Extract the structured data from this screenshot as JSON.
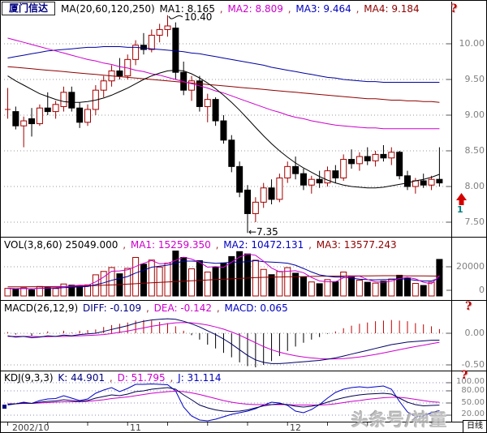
{
  "header": {
    "symbol": "厦门信达",
    "ma_group": "MA(20,60,120,250)",
    "sep": ",",
    "ma1": {
      "label": "MA1: 8.165",
      "color": "#000000"
    },
    "ma2": {
      "label": "MA2: 8.809",
      "color": "#CC00CC"
    },
    "ma3": {
      "label": "MA3: 9.464",
      "color": "#0000C0"
    },
    "ma4": {
      "label": "MA4: 9.184",
      "color": "#900000"
    },
    "help_icon": "?"
  },
  "main_chart": {
    "axis_labels": [
      "10.00",
      "9.50",
      "9.00",
      "8.50",
      "8.00",
      "7.50"
    ],
    "high_annotation": "10.40",
    "low_annotation": "←7.35",
    "signal_number": "1"
  },
  "vol": {
    "title": "VOL(3,8,60) 25049.000",
    "ma1": {
      "label": "MA1: 15259.350",
      "color": "#CC00CC"
    },
    "ma2": {
      "label": "MA2: 10472.131",
      "color": "#0000C0"
    },
    "ma3": {
      "label": "MA3: 13577.243",
      "color": "#900000"
    },
    "axis_labels": [
      "20000",
      "0"
    ]
  },
  "macd": {
    "title": "MACD(26,12,9)",
    "diff": {
      "label": "DIFF: -0.109",
      "color": "#000080"
    },
    "dea": {
      "label": "DEA: -0.142",
      "color": "#CC00CC"
    },
    "macd": {
      "label": "MACD: 0.065",
      "color": "#0000C0"
    },
    "axis_labels": [
      "0.00",
      "-0.50"
    ],
    "help_icon": "?"
  },
  "kdj": {
    "title": "KDJ(9,3,3)",
    "k": {
      "label": "K: 44.901",
      "color": "#000080"
    },
    "d": {
      "label": "D: 51.795",
      "color": "#CC00CC"
    },
    "j": {
      "label": "J: 31.114",
      "color": "#0000C0"
    },
    "axis_labels": [
      "100.00",
      "80.00",
      "50.00",
      "20.00"
    ],
    "help_icon": "?"
  },
  "date_axis": {
    "labels": [
      "2002/10",
      "11",
      "12"
    ]
  },
  "watermark": "头条号/神童",
  "period_selector": "日线",
  "chart_data": {
    "type": "candlestick-multi-panel",
    "symbol": "厦门信达",
    "panels": [
      "price+MA(20,60,120,250)",
      "VOL(3,8,60)",
      "MACD(26,12,9)",
      "KDJ(9,3,3)"
    ],
    "x_months": {
      "2002/10": 0,
      "11": 16,
      "12": 36
    },
    "price_axis": [
      10.0,
      9.5,
      9.0,
      8.5,
      8.0,
      7.5
    ],
    "high_label": 10.4,
    "low_label": 7.35,
    "last_values": {
      "ma1": 8.165,
      "ma2": 8.809,
      "ma3": 9.464,
      "ma4": 9.184,
      "vol": 25049.0,
      "vol_ma1": 15259.35,
      "vol_ma2": 10472.131,
      "vol_ma3": 13577.243,
      "diff": -0.109,
      "dea": -0.142,
      "macd": 0.065,
      "k": 44.901,
      "d": 51.795,
      "j": 31.114
    },
    "candles": [
      [
        9.08,
        9.38,
        8.95,
        9.08,
        5200
      ],
      [
        9.05,
        9.12,
        8.8,
        8.85,
        4800
      ],
      [
        8.85,
        8.98,
        8.55,
        8.92,
        5600
      ],
      [
        8.95,
        9.1,
        8.7,
        8.88,
        4200
      ],
      [
        8.88,
        9.15,
        8.85,
        9.1,
        6500
      ],
      [
        9.1,
        9.32,
        9.0,
        9.05,
        5800
      ],
      [
        9.05,
        9.2,
        8.95,
        9.15,
        5100
      ],
      [
        9.12,
        9.4,
        9.05,
        9.32,
        8200
      ],
      [
        9.32,
        9.4,
        9.05,
        9.1,
        7400
      ],
      [
        9.1,
        9.18,
        8.82,
        8.9,
        6800
      ],
      [
        8.9,
        9.15,
        8.85,
        9.08,
        7600
      ],
      [
        9.08,
        9.42,
        9.0,
        9.35,
        14500
      ],
      [
        9.35,
        9.55,
        9.25,
        9.48,
        16800
      ],
      [
        9.48,
        9.7,
        9.4,
        9.62,
        19500
      ],
      [
        9.62,
        9.8,
        9.5,
        9.55,
        15200
      ],
      [
        9.55,
        9.85,
        9.5,
        9.78,
        18900
      ],
      [
        9.78,
        10.05,
        9.7,
        9.98,
        26400
      ],
      [
        9.98,
        10.15,
        9.85,
        9.92,
        21800
      ],
      [
        9.92,
        10.2,
        9.88,
        10.12,
        24600
      ],
      [
        10.12,
        10.28,
        10.02,
        10.2,
        19800
      ],
      [
        10.2,
        10.4,
        10.1,
        10.25,
        22500
      ],
      [
        10.22,
        10.3,
        9.5,
        9.6,
        30800
      ],
      [
        9.6,
        9.75,
        9.28,
        9.35,
        26400
      ],
      [
        9.35,
        9.55,
        9.2,
        9.48,
        18600
      ],
      [
        9.48,
        9.55,
        9.05,
        9.12,
        24200
      ],
      [
        9.12,
        9.3,
        8.9,
        9.22,
        16400
      ],
      [
        9.22,
        9.25,
        8.85,
        8.92,
        19800
      ],
      [
        8.92,
        9.0,
        8.6,
        8.65,
        22600
      ],
      [
        8.65,
        8.72,
        8.2,
        8.28,
        27000
      ],
      [
        8.28,
        8.35,
        7.85,
        7.92,
        30400
      ],
      [
        7.95,
        8.02,
        7.35,
        7.62,
        28800
      ],
      [
        7.62,
        7.85,
        7.5,
        7.78,
        24500
      ],
      [
        7.78,
        8.05,
        7.7,
        7.98,
        18200
      ],
      [
        7.98,
        8.1,
        7.75,
        7.82,
        14600
      ],
      [
        7.82,
        8.18,
        7.78,
        8.12,
        16800
      ],
      [
        8.12,
        8.35,
        8.05,
        8.28,
        19400
      ],
      [
        8.28,
        8.42,
        8.1,
        8.18,
        15600
      ],
      [
        8.18,
        8.25,
        7.95,
        8.02,
        12800
      ],
      [
        8.02,
        8.15,
        7.9,
        8.1,
        9600
      ],
      [
        8.1,
        8.22,
        7.98,
        8.05,
        8400
      ],
      [
        8.05,
        8.28,
        8.0,
        8.22,
        11200
      ],
      [
        8.22,
        8.3,
        8.05,
        8.12,
        9800
      ],
      [
        8.12,
        8.45,
        8.08,
        8.38,
        16400
      ],
      [
        8.38,
        8.52,
        8.25,
        8.32,
        13600
      ],
      [
        8.32,
        8.48,
        8.22,
        8.42,
        10800
      ],
      [
        8.42,
        8.55,
        8.3,
        8.36,
        9400
      ],
      [
        8.36,
        8.5,
        8.28,
        8.45,
        8800
      ],
      [
        8.45,
        8.58,
        8.35,
        8.4,
        10200
      ],
      [
        8.4,
        8.55,
        8.3,
        8.48,
        11600
      ],
      [
        8.48,
        8.5,
        8.1,
        8.15,
        14200
      ],
      [
        8.15,
        8.22,
        7.95,
        8.0,
        12400
      ],
      [
        8.0,
        8.12,
        7.9,
        8.08,
        8600
      ],
      [
        8.08,
        8.18,
        7.98,
        8.02,
        7200
      ],
      [
        8.02,
        8.15,
        7.95,
        8.1,
        9400
      ],
      [
        8.1,
        8.55,
        8.0,
        8.05,
        25049
      ]
    ],
    "ma1": [
      9.55,
      9.48,
      9.42,
      9.36,
      9.3,
      9.26,
      9.22,
      9.19,
      9.18,
      9.18,
      9.19,
      9.21,
      9.24,
      9.28,
      9.33,
      9.38,
      9.44,
      9.5,
      9.55,
      9.59,
      9.62,
      9.63,
      9.62,
      9.58,
      9.52,
      9.45,
      9.37,
      9.28,
      9.18,
      9.07,
      8.95,
      8.83,
      8.71,
      8.6,
      8.5,
      8.41,
      8.33,
      8.26,
      8.2,
      8.14,
      8.09,
      8.05,
      8.02,
      8.0,
      7.99,
      7.98,
      7.98,
      7.99,
      8.01,
      8.03,
      8.05,
      8.08,
      8.1,
      8.13,
      8.17
    ],
    "ma2": [
      10.08,
      10.05,
      10.02,
      9.99,
      9.96,
      9.93,
      9.9,
      9.87,
      9.84,
      9.81,
      9.78,
      9.76,
      9.73,
      9.71,
      9.68,
      9.66,
      9.63,
      9.61,
      9.58,
      9.56,
      9.53,
      9.5,
      9.47,
      9.44,
      9.41,
      9.38,
      9.34,
      9.31,
      9.27,
      9.23,
      9.19,
      9.15,
      9.11,
      9.07,
      9.04,
      9.0,
      8.97,
      8.95,
      8.92,
      8.9,
      8.88,
      8.86,
      8.85,
      8.84,
      8.83,
      8.82,
      8.82,
      8.81,
      8.81,
      8.81,
      8.81,
      8.81,
      8.81,
      8.81,
      8.81
    ],
    "ma3": [
      9.8,
      9.82,
      9.84,
      9.86,
      9.88,
      9.9,
      9.91,
      9.92,
      9.93,
      9.94,
      9.95,
      9.95,
      9.96,
      9.96,
      9.96,
      9.95,
      9.95,
      9.94,
      9.93,
      9.92,
      9.91,
      9.9,
      9.89,
      9.87,
      9.86,
      9.84,
      9.82,
      9.8,
      9.78,
      9.76,
      9.74,
      9.72,
      9.7,
      9.67,
      9.65,
      9.63,
      9.61,
      9.59,
      9.57,
      9.55,
      9.53,
      9.52,
      9.5,
      9.49,
      9.48,
      9.47,
      9.47,
      9.46,
      9.46,
      9.46,
      9.46,
      9.46,
      9.46,
      9.46,
      9.46
    ],
    "ma4": [
      9.68,
      9.67,
      9.66,
      9.65,
      9.64,
      9.63,
      9.62,
      9.61,
      9.6,
      9.59,
      9.58,
      9.57,
      9.56,
      9.55,
      9.54,
      9.53,
      9.52,
      9.51,
      9.5,
      9.49,
      9.48,
      9.47,
      9.46,
      9.45,
      9.44,
      9.43,
      9.42,
      9.41,
      9.4,
      9.39,
      9.38,
      9.37,
      9.36,
      9.35,
      9.34,
      9.33,
      9.32,
      9.31,
      9.3,
      9.29,
      9.28,
      9.27,
      9.26,
      9.25,
      9.24,
      9.23,
      9.23,
      9.22,
      9.21,
      9.21,
      9.2,
      9.2,
      9.19,
      9.19,
      9.18
    ],
    "vol_ma60_points": [
      [
        0,
        6200
      ],
      [
        8,
        6500
      ],
      [
        14,
        7800
      ],
      [
        20,
        9600
      ],
      [
        26,
        11200
      ],
      [
        32,
        12800
      ],
      [
        40,
        13600
      ],
      [
        48,
        13900
      ],
      [
        54,
        13600
      ]
    ],
    "diff": [
      -0.04,
      -0.06,
      -0.05,
      -0.07,
      -0.06,
      -0.04,
      -0.05,
      -0.03,
      -0.04,
      -0.02,
      -0.01,
      0.0,
      0.03,
      0.06,
      0.09,
      0.12,
      0.16,
      0.19,
      0.21,
      0.22,
      0.23,
      0.22,
      0.19,
      0.15,
      0.1,
      0.04,
      -0.02,
      -0.09,
      -0.17,
      -0.26,
      -0.35,
      -0.42,
      -0.46,
      -0.48,
      -0.48,
      -0.47,
      -0.46,
      -0.45,
      -0.44,
      -0.43,
      -0.41,
      -0.39,
      -0.36,
      -0.33,
      -0.3,
      -0.27,
      -0.24,
      -0.21,
      -0.18,
      -0.16,
      -0.14,
      -0.13,
      -0.12,
      -0.11,
      -0.109
    ],
    "dea": [
      -0.05,
      -0.05,
      -0.05,
      -0.05,
      -0.055,
      -0.055,
      -0.05,
      -0.05,
      -0.045,
      -0.04,
      -0.035,
      -0.03,
      -0.02,
      -0.005,
      0.015,
      0.035,
      0.06,
      0.085,
      0.11,
      0.13,
      0.15,
      0.165,
      0.17,
      0.165,
      0.15,
      0.13,
      0.1,
      0.065,
      0.02,
      -0.03,
      -0.09,
      -0.15,
      -0.21,
      -0.26,
      -0.3,
      -0.33,
      -0.355,
      -0.375,
      -0.39,
      -0.4,
      -0.405,
      -0.405,
      -0.4,
      -0.39,
      -0.375,
      -0.355,
      -0.335,
      -0.31,
      -0.285,
      -0.26,
      -0.235,
      -0.21,
      -0.19,
      -0.165,
      -0.142
    ],
    "k": [
      47,
      48,
      50,
      49,
      52,
      54,
      55,
      58,
      56,
      54,
      56,
      62,
      66,
      70,
      68,
      72,
      78,
      80,
      84,
      86,
      88,
      84,
      70,
      58,
      45,
      38,
      33,
      30,
      29,
      30,
      33,
      38,
      43,
      46,
      48,
      46,
      42,
      40,
      42,
      46,
      52,
      58,
      63,
      67,
      70,
      72,
      73,
      74,
      72,
      62,
      52,
      46,
      43,
      44,
      44.9
    ],
    "d": [
      48,
      48,
      49,
      49,
      50,
      51,
      52,
      53,
      53,
      53,
      54,
      56,
      58,
      61,
      63,
      65,
      68,
      71,
      74,
      76,
      78,
      79,
      78,
      75,
      71,
      66,
      61,
      56,
      52,
      49,
      47,
      46,
      46,
      46,
      46,
      46,
      45,
      45,
      45,
      45,
      46,
      48,
      51,
      54,
      56,
      59,
      61,
      63,
      64,
      64,
      62,
      59,
      56,
      53,
      51.8
    ],
    "j": [
      45,
      48,
      52,
      49,
      56,
      60,
      61,
      68,
      62,
      56,
      60,
      74,
      82,
      88,
      78,
      86,
      96,
      96,
      97,
      96,
      95,
      80,
      40,
      18,
      8,
      6,
      10,
      16,
      22,
      26,
      30,
      36,
      45,
      52,
      50,
      44,
      30,
      26,
      34,
      46,
      62,
      76,
      84,
      88,
      90,
      88,
      90,
      92,
      84,
      54,
      28,
      16,
      18,
      26,
      31.1
    ],
    "colors": {
      "up": "#A40000",
      "down": "#000000",
      "ma1": "#000000",
      "ma2": "#CC00CC",
      "ma3": "#0000A0",
      "ma4": "#900000",
      "hist_pos": "#C00000",
      "hist_neg": "#000000",
      "grid": "#9a9a9a",
      "kdj_grid": "#8d8dbb"
    }
  }
}
